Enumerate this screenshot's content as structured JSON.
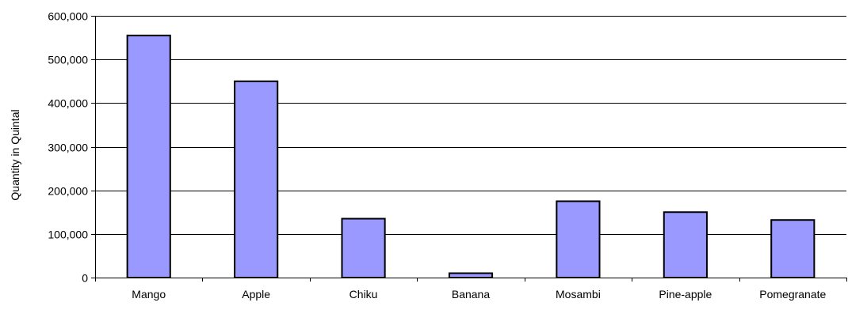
{
  "chart_data": {
    "type": "bar",
    "title": "",
    "xlabel": "",
    "ylabel": "Quantity in Quintal",
    "categories": [
      "Mango",
      "Apple",
      "Chiku",
      "Banana",
      "Mosambi",
      "Pine-apple",
      "Pomegranate"
    ],
    "values": [
      555000,
      450000,
      135000,
      10000,
      175000,
      150000,
      132000
    ],
    "ylim": [
      0,
      600000
    ],
    "yticks": [
      0,
      100000,
      200000,
      300000,
      400000,
      500000,
      600000
    ],
    "ytick_labels": [
      "0",
      "100,000",
      "200,000",
      "300,000",
      "400,000",
      "500,000",
      "600,000"
    ],
    "grid": true,
    "legend": "none",
    "bar_color": "#9999ff"
  }
}
